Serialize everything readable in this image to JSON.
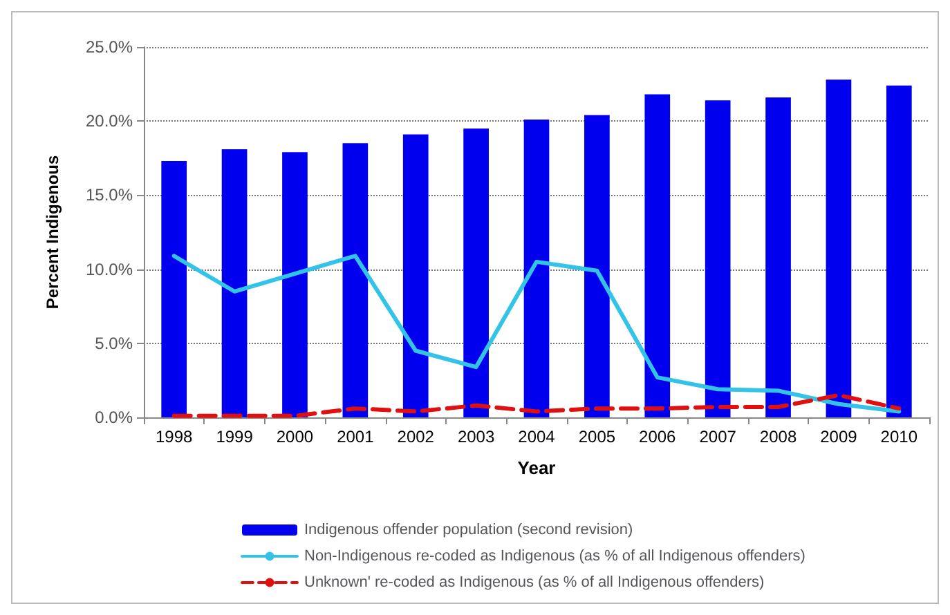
{
  "chart_data": {
    "type": "bar",
    "xlabel": "Year",
    "ylabel": "Percent Indigenous",
    "categories": [
      "1998",
      "1999",
      "2000",
      "2001",
      "2002",
      "2003",
      "2004",
      "2005",
      "2006",
      "2007",
      "2008",
      "2009",
      "2010"
    ],
    "series": [
      {
        "name": "Indigenous offender population (second revision)",
        "color": "#0000ee",
        "values": [
          17.3,
          18.1,
          17.9,
          18.5,
          19.1,
          19.5,
          20.1,
          20.4,
          21.8,
          21.4,
          21.6,
          22.8,
          22.4
        ]
      },
      {
        "name": "Non-Indigenous re-coded as Indigenous (as % of all Indigenous offenders)",
        "type": "line",
        "color": "#33c3e8",
        "line_style": "solid",
        "values": [
          10.9,
          8.5,
          9.7,
          10.9,
          4.5,
          3.4,
          10.5,
          9.9,
          2.7,
          1.9,
          1.8,
          0.9,
          0.4
        ]
      },
      {
        "name": "Unknown' re-coded as Indigenous (as % of all Indigenous offenders)",
        "type": "line",
        "color": "#e01010",
        "line_style": "dashed",
        "values": [
          0.1,
          0.1,
          0.1,
          0.6,
          0.4,
          0.8,
          0.4,
          0.6,
          0.6,
          0.7,
          0.7,
          1.5,
          0.6
        ]
      }
    ],
    "ylim": [
      0,
      25
    ],
    "yticks": [
      {
        "value": 0,
        "label": "0.0%"
      },
      {
        "value": 5,
        "label": "5.0%"
      },
      {
        "value": 10,
        "label": "10.0%"
      },
      {
        "value": 15,
        "label": "15.0%"
      },
      {
        "value": 20,
        "label": "20.0%"
      },
      {
        "value": 25,
        "label": "25.0%"
      }
    ],
    "grid": "y",
    "legend": "bottom",
    "marker": "none"
  }
}
